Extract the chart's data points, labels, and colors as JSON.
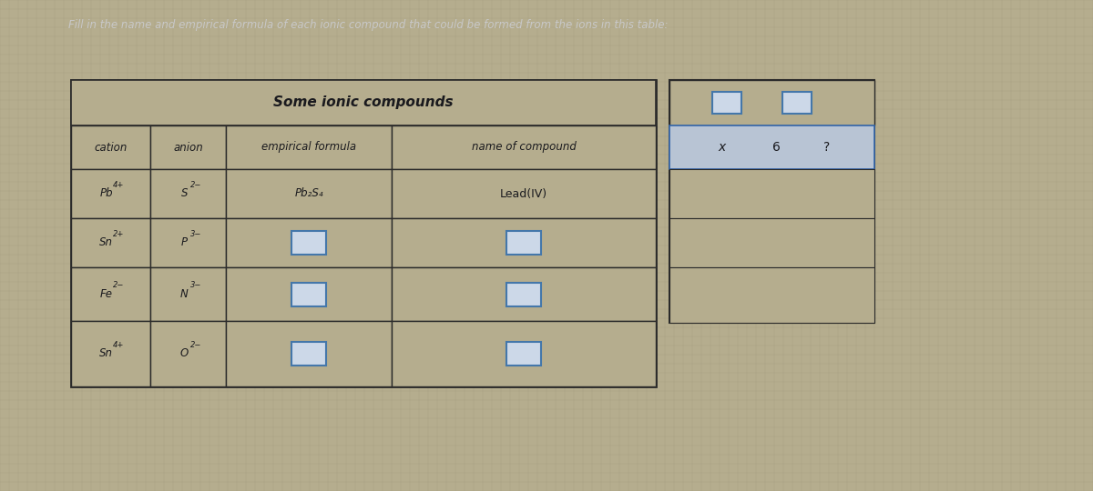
{
  "title_instruction": "Fill in the name and empirical formula of each ionic compound that could be formed from the ions in this table:",
  "table_title": "Some ionic compounds",
  "col_headers": [
    "cation",
    "anion",
    "empirical formula",
    "name of compound"
  ],
  "bg_color": "#b5ad8e",
  "grid_color": "#9e9678",
  "table_line_color": "#2a2a2a",
  "text_color": "#1a1a1e",
  "instruction_color": "#c8c8c8",
  "input_box_color": "#4477aa",
  "input_box_fill": "#ccd8e8",
  "side_highlight_fill": "#b8c4d4",
  "side_highlight_border": "#3366aa",
  "formula_row1": "Pb₂S₄",
  "name_row1": "Lead(IV)",
  "rows": [
    {
      "cat": "Pb",
      "cat_charge": "4+",
      "an": "S",
      "an_charge": "2−",
      "has_input": false
    },
    {
      "cat": "Sn",
      "cat_charge": "2+",
      "an": "P",
      "an_charge": "3−",
      "has_input": true
    },
    {
      "cat": "Fe",
      "cat_charge": "2−",
      "an": "N",
      "an_charge": "3−",
      "has_input": true
    },
    {
      "cat": "Sn",
      "cat_charge": "4+",
      "an": "O",
      "an_charge": "2−",
      "has_input": true
    }
  ]
}
